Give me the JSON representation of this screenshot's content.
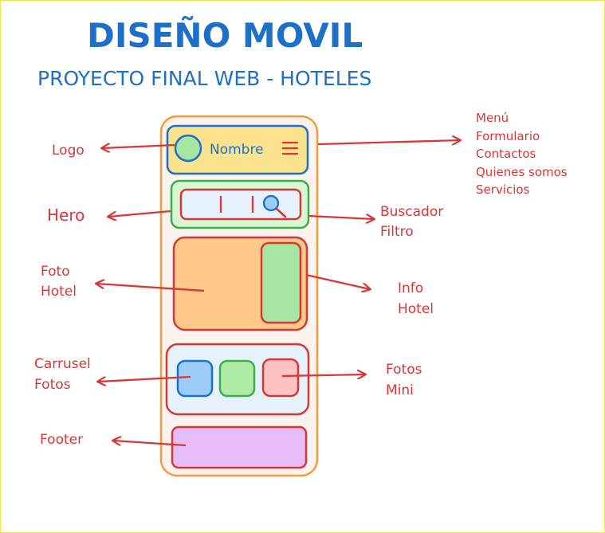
{
  "title": "DISEÑO MOVIL",
  "subtitle": "PROYECTO FINAL WEB - HOTELES",
  "phone": {
    "header_name": "Nombre",
    "menu_icon": "hamburger-icon",
    "search_icon": "magnifier-icon"
  },
  "labels": {
    "logo": "Logo",
    "hero": "Hero",
    "foto_hotel_1": "Foto",
    "foto_hotel_2": "Hotel",
    "carrusel_1": "Carrusel",
    "carrusel_2": "Fotos",
    "footer": "Footer",
    "buscador_1": "Buscador",
    "buscador_2": "Filtro",
    "info_1": "Info",
    "info_2": "Hotel",
    "mini_1": "Fotos",
    "mini_2": "Mini"
  },
  "menu_items": [
    "Menú",
    "Formulario",
    "Contactos",
    "Quienes somos",
    "Servicios"
  ],
  "colors": {
    "title_blue": "#1e6fc6",
    "arrow_red": "#d93636",
    "phone_outline": "#f29d38",
    "phone_fill": "#fdf3ee",
    "header_fill": "#fbe38e",
    "hero_outline": "#3cae4c",
    "hero_fill": "#d8f5d5",
    "photo_fill": "#fcc98a",
    "info_fill": "#a7e5a2",
    "carousel_fill": "#e5f2fb",
    "mini_blue": "#9ccdf8",
    "mini_green": "#b0eba6",
    "mini_red": "#ffc2c2",
    "footer_fill": "#e6bdf7"
  }
}
